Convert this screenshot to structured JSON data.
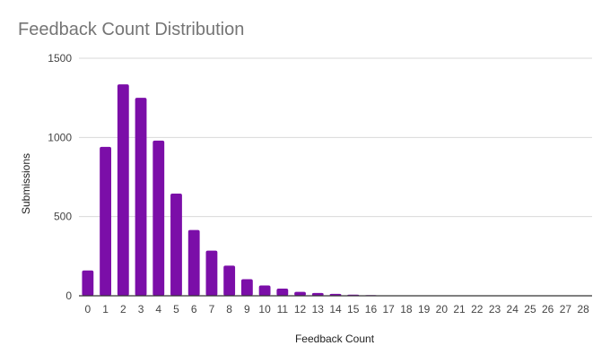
{
  "chart_data": {
    "type": "bar",
    "title": "Feedback Count Distribution",
    "xlabel": "Feedback Count",
    "ylabel": "Submissions",
    "categories": [
      "0",
      "1",
      "2",
      "3",
      "4",
      "5",
      "6",
      "7",
      "8",
      "9",
      "10",
      "11",
      "12",
      "13",
      "14",
      "15",
      "16",
      "17",
      "18",
      "19",
      "20",
      "21",
      "22",
      "23",
      "24",
      "25",
      "26",
      "27",
      "28"
    ],
    "values": [
      160,
      940,
      1335,
      1250,
      980,
      645,
      415,
      285,
      190,
      105,
      65,
      45,
      25,
      18,
      12,
      7,
      4,
      3,
      2,
      2,
      1,
      1,
      1,
      1,
      1,
      1,
      1,
      1,
      1
    ],
    "ylim": [
      0,
      1500
    ],
    "yticks": [
      0,
      500,
      1000,
      1500
    ],
    "grid": true,
    "legend": "none",
    "bar_color": "#7b0ea8"
  }
}
